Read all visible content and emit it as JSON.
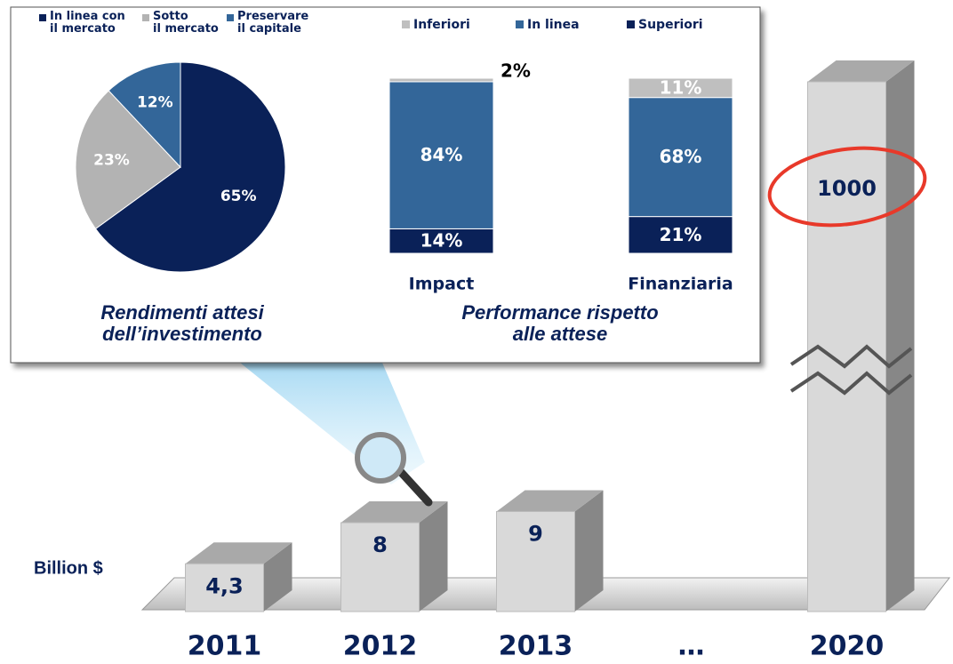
{
  "chart_data": [
    {
      "type": "bar3d",
      "y_label": "Billion $",
      "categories": [
        "2011",
        "2012",
        "2013",
        "…",
        "2020"
      ],
      "values": [
        4.3,
        8,
        9,
        null,
        1000
      ],
      "value_labels": [
        "4,3",
        "8",
        "9",
        null,
        "1000"
      ],
      "color": "#d9d9d9",
      "axis_break": true
    },
    {
      "type": "pie",
      "caption": "Rendimenti attesi\ndell’investimento",
      "categories": [
        "In linea con\nil mercato",
        "Sotto\nil mercato",
        "Preservare\nil capitale"
      ],
      "values": [
        65,
        23,
        12
      ],
      "value_labels": [
        "65%",
        "23%",
        "12%"
      ],
      "colors": [
        "#0a2158",
        "#b3b3b3",
        "#336699"
      ]
    },
    {
      "type": "stacked_bar",
      "caption": "Performance rispetto\nalle attese",
      "categories": [
        "Impact",
        "Finanziaria"
      ],
      "series": [
        {
          "name": "Inferiori",
          "color": "#bfbfbf",
          "values": [
            2,
            11
          ],
          "value_labels": [
            "2%",
            "11%"
          ]
        },
        {
          "name": "In linea",
          "color": "#336699",
          "values": [
            84,
            68
          ],
          "value_labels": [
            "84%",
            "68%"
          ]
        },
        {
          "name": "Superiori",
          "color": "#0a2158",
          "values": [
            14,
            21
          ],
          "value_labels": [
            "14%",
            "21%"
          ]
        }
      ]
    }
  ]
}
